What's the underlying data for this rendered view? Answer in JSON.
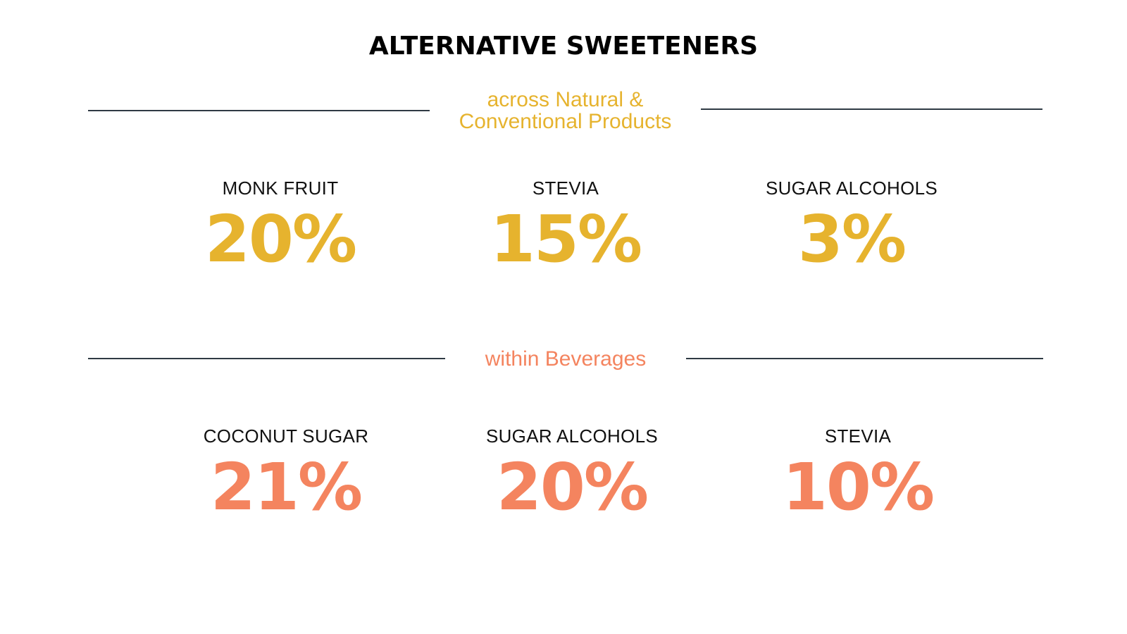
{
  "title": "ALTERNATIVE SWEETENERS",
  "colors": {
    "accent_gold": "#e6b32e",
    "accent_coral": "#f4845f",
    "rule": "#2f3a44",
    "text": "#111111"
  },
  "sections": [
    {
      "subtitle_lines": [
        "across Natural &",
        "Conventional Products"
      ],
      "items": [
        {
          "label": "MONK FRUIT",
          "value": "20%"
        },
        {
          "label": "STEVIA",
          "value": "15%"
        },
        {
          "label": "SUGAR ALCOHOLS",
          "value": "3%"
        }
      ]
    },
    {
      "subtitle_lines": [
        "within Beverages"
      ],
      "items": [
        {
          "label": "COCONUT SUGAR",
          "value": "21%"
        },
        {
          "label": "SUGAR ALCOHOLS",
          "value": "20%"
        },
        {
          "label": "STEVIA",
          "value": "10%"
        }
      ]
    }
  ]
}
